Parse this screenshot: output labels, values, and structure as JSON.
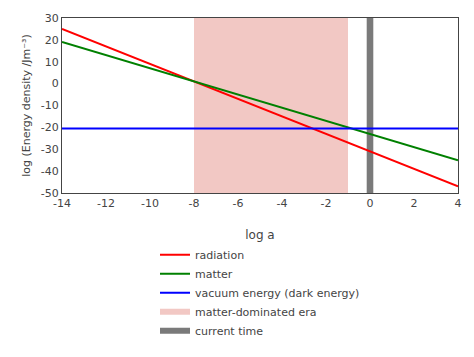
{
  "chart_data": {
    "type": "line",
    "xlabel": "log a",
    "ylabel": "log (Energy density /Jm⁻³)",
    "x": [
      -14,
      4
    ],
    "series": [
      {
        "name": "radiation",
        "color": "red",
        "values": [
          25,
          -47
        ]
      },
      {
        "name": "matter",
        "color": "green",
        "values": [
          19,
          -35
        ]
      },
      {
        "name": "vacuum energy (dark energy)",
        "color": "blue",
        "values": [
          -20.5,
          -20.5
        ]
      }
    ],
    "regions": [
      {
        "name": "matter-dominated era",
        "color": "#f2c8c4",
        "x": [
          -8,
          -1
        ]
      },
      {
        "name": "current time",
        "color": "#7a7a7a",
        "x": [
          -0.15,
          0.15
        ]
      }
    ],
    "xlim": [
      -14,
      4
    ],
    "xticks": [
      -14,
      -12,
      -10,
      -8,
      -6,
      -4,
      -2,
      0,
      2,
      4
    ],
    "ylim": [
      -50,
      30
    ],
    "yticks": [
      -50,
      -40,
      -30,
      -20,
      -10,
      0,
      10,
      20,
      30
    ],
    "grid": false,
    "legend": "bottom"
  }
}
